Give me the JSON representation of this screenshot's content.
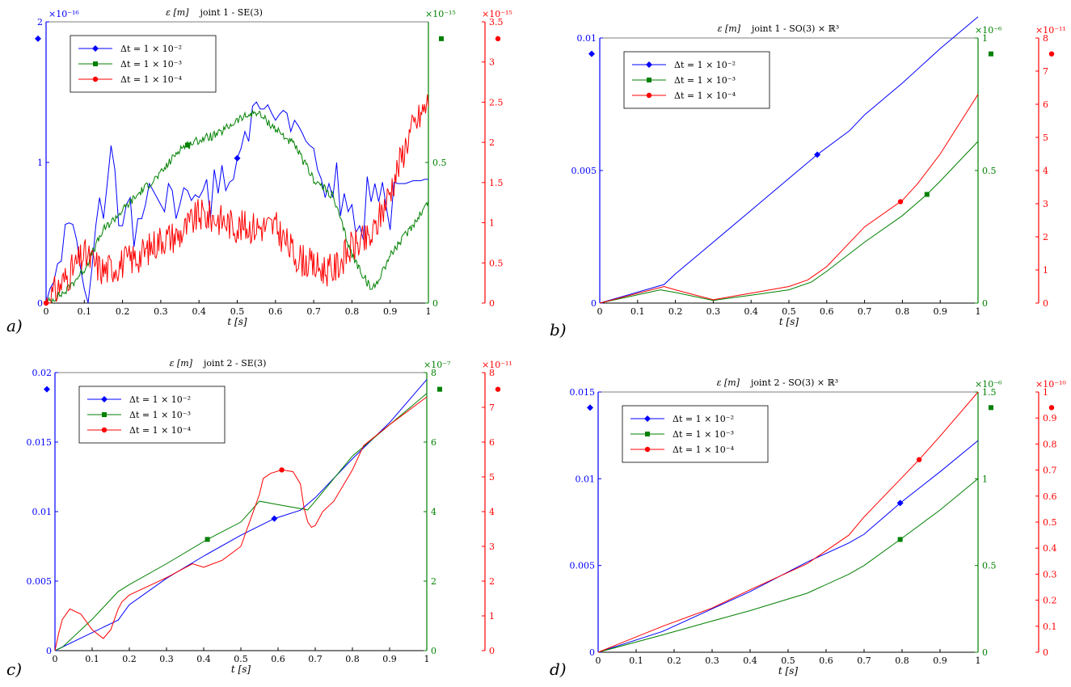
{
  "colors": {
    "blue": "#0000ff",
    "green": "#008000",
    "red": "#ff0000",
    "axis": "#000000"
  },
  "chart_data": [
    {
      "id": "a",
      "panel_label": "a)",
      "type": "line",
      "title_symbol": "ε [m]",
      "title": "joint 1 - SE(3)",
      "xlabel": "t [s]",
      "xlim": [
        0,
        1
      ],
      "xticks": [
        "0",
        "0.1",
        "0.2",
        "0.3",
        "0.4",
        "0.5",
        "0.6",
        "0.7",
        "0.8",
        "0.9",
        "1"
      ],
      "legend_position": "top-left",
      "axes": [
        {
          "side": "left",
          "color": "blue",
          "ylim": [
            0,
            2
          ],
          "ticks": [
            0,
            1,
            2
          ],
          "tick_labels": [
            "0",
            "1",
            "2"
          ],
          "exponent": "×10⁻¹⁶"
        },
        {
          "side": "right",
          "color": "green",
          "ylim": [
            0,
            1.0
          ],
          "ticks": [
            0,
            0.5
          ],
          "tick_labels": [
            "0",
            "0.5"
          ],
          "exponent": "×10⁻¹⁵"
        },
        {
          "side": "right-outer",
          "color": "red",
          "ylim": [
            0,
            3.5
          ],
          "ticks": [
            0,
            0.5,
            1,
            1.5,
            2,
            2.5,
            3,
            3.5
          ],
          "tick_labels": [
            "0",
            "0.5",
            "1",
            "1.5",
            "2",
            "2.5",
            "3",
            "3.5"
          ],
          "exponent": "×10⁻¹⁵"
        }
      ],
      "series": [
        {
          "name": "Δt = 1 × 10⁻²",
          "color": "blue",
          "axis": 0,
          "marker": "diamond",
          "marker_x": 0.5,
          "noise": 0,
          "x": [
            0,
            0.01,
            0.02,
            0.03,
            0.04,
            0.05,
            0.06,
            0.07,
            0.08,
            0.09,
            0.1,
            0.11,
            0.12,
            0.13,
            0.14,
            0.15,
            0.16,
            0.17,
            0.18,
            0.19,
            0.2,
            0.21,
            0.22,
            0.23,
            0.24,
            0.25,
            0.26,
            0.27,
            0.28,
            0.29,
            0.3,
            0.31,
            0.32,
            0.33,
            0.34,
            0.35,
            0.36,
            0.37,
            0.38,
            0.39,
            0.4,
            0.41,
            0.42,
            0.43,
            0.44,
            0.45,
            0.46,
            0.47,
            0.48,
            0.49,
            0.5,
            0.51,
            0.52,
            0.53,
            0.54,
            0.55,
            0.56,
            0.57,
            0.58,
            0.59,
            0.6,
            0.61,
            0.62,
            0.63,
            0.64,
            0.65,
            0.66,
            0.67,
            0.68,
            0.69,
            0.7,
            0.71,
            0.72,
            0.73,
            0.74,
            0.75,
            0.76,
            0.77,
            0.78,
            0.79,
            0.8,
            0.81,
            0.82,
            0.83,
            0.84,
            0.85,
            0.86,
            0.87,
            0.88,
            0.89,
            0.9,
            0.91,
            0.92,
            0.93,
            0.94,
            0.95,
            0.96,
            0.97,
            0.98,
            0.99,
            1.0
          ],
          "y": [
            0,
            0.1,
            0.15,
            0.28,
            0.3,
            0.56,
            0.57,
            0.56,
            0.45,
            0.25,
            0.1,
            0,
            0.25,
            0.55,
            0.75,
            0.6,
            0.85,
            1.12,
            0.95,
            0.55,
            0.55,
            0.7,
            0.75,
            0.4,
            0.6,
            0.6,
            0.7,
            0.85,
            0.8,
            0.75,
            0.7,
            0.65,
            0.85,
            0.8,
            0.6,
            0.7,
            0.82,
            0.8,
            0.73,
            0.77,
            0.75,
            0.8,
            0.88,
            0.6,
            0.95,
            0.78,
            0.98,
            0.8,
            0.86,
            0.88,
            1.03,
            1.1,
            1.22,
            1.15,
            1.4,
            1.43,
            1.38,
            1.38,
            1.41,
            1.35,
            1.3,
            1.34,
            1.37,
            1.35,
            1.22,
            1.3,
            1.26,
            1.21,
            1.15,
            1.12,
            1.1,
            0.95,
            0.88,
            0.75,
            0.85,
            0.75,
            1.0,
            0.62,
            0.78,
            0.65,
            0.7,
            0.5,
            0.55,
            0.45,
            0.9,
            0.72,
            0.85,
            0.72,
            0.86,
            0.68,
            0.52,
            0.86,
            0.85,
            0.85,
            0.85,
            0.86,
            0.87,
            0.87,
            0.87,
            0.88,
            0.88
          ]
        },
        {
          "name": "Δt = 1 × 10⁻³",
          "color": "green",
          "axis": 1,
          "marker": "square",
          "marker_x": 0.37,
          "noise": 0.015,
          "x": [
            0,
            0.05,
            0.1,
            0.15,
            0.2,
            0.25,
            0.3,
            0.35,
            0.4,
            0.45,
            0.5,
            0.55,
            0.6,
            0.65,
            0.7,
            0.75,
            0.8,
            0.85,
            0.86,
            0.9,
            0.95,
            1.0
          ],
          "y": [
            0,
            0.04,
            0.12,
            0.26,
            0.33,
            0.4,
            0.46,
            0.55,
            0.58,
            0.6,
            0.65,
            0.68,
            0.62,
            0.56,
            0.44,
            0.38,
            0.17,
            0.05,
            0.06,
            0.17,
            0.26,
            0.36
          ]
        },
        {
          "name": "Δt = 1 × 10⁻⁴",
          "color": "red",
          "axis": 2,
          "marker": "circle",
          "marker_x": 0.0,
          "noise": 0.06,
          "x": [
            0,
            0.05,
            0.1,
            0.15,
            0.2,
            0.25,
            0.3,
            0.35,
            0.4,
            0.45,
            0.5,
            0.55,
            0.6,
            0.65,
            0.7,
            0.75,
            0.8,
            0.85,
            0.9,
            0.95,
            1.0
          ],
          "y": [
            0,
            0.3,
            0.6,
            0.4,
            0.5,
            0.6,
            0.8,
            0.85,
            1.1,
            1.05,
            0.95,
            0.95,
            0.95,
            0.6,
            0.45,
            0.4,
            0.7,
            0.8,
            1.4,
            2.1,
            2.5
          ]
        }
      ]
    },
    {
      "id": "b",
      "panel_label": "b)",
      "type": "line",
      "title_symbol": "ε [m]",
      "title": "joint 1 - SO(3) × ℝ³",
      "xlabel": "t [s]",
      "xlim": [
        0,
        1
      ],
      "xticks": [
        "0",
        "0.1",
        "0.2",
        "0.3",
        "0.4",
        "0.5",
        "0.6",
        "0.7",
        "0.8",
        "0.9",
        "1"
      ],
      "legend_position": "top-left",
      "axes": [
        {
          "side": "left",
          "color": "blue",
          "ylim": [
            0,
            0.01
          ],
          "ticks": [
            0,
            0.005,
            0.01
          ],
          "tick_labels": [
            "0",
            "0.005",
            "0.01"
          ],
          "exponent": ""
        },
        {
          "side": "right",
          "color": "green",
          "ylim": [
            0,
            1.0
          ],
          "ticks": [
            0,
            0.5,
            1
          ],
          "tick_labels": [
            "0",
            "0.5",
            "1"
          ],
          "exponent": "×10⁻⁶"
        },
        {
          "side": "right-outer",
          "color": "red",
          "ylim": [
            0,
            8
          ],
          "ticks": [
            0,
            1,
            2,
            3,
            4,
            5,
            6,
            7,
            8
          ],
          "tick_labels": [
            "0",
            "1",
            "2",
            "3",
            "4",
            "5",
            "6",
            "7",
            "8"
          ],
          "exponent": "×10⁻¹¹"
        }
      ],
      "series": [
        {
          "name": "Δt = 1 × 10⁻²",
          "color": "blue",
          "axis": 0,
          "marker": "diamond",
          "marker_x": 0.575,
          "noise": 0,
          "x": [
            0,
            0.17,
            0.2,
            0.3,
            0.4,
            0.5,
            0.575,
            0.66,
            0.7,
            0.8,
            0.9,
            1.0
          ],
          "y": [
            0,
            0.0007,
            0.0011,
            0.0023,
            0.0035,
            0.0047,
            0.0056,
            0.0065,
            0.0071,
            0.0083,
            0.0096,
            0.0108
          ]
        },
        {
          "name": "Δt = 1 × 10⁻³",
          "color": "green",
          "axis": 1,
          "marker": "square",
          "marker_x": 0.865,
          "noise": 0,
          "x": [
            0,
            0.16,
            0.2,
            0.3,
            0.35,
            0.4,
            0.5,
            0.56,
            0.6,
            0.7,
            0.8,
            0.865,
            0.9,
            1.0
          ],
          "y": [
            0,
            0.05,
            0.04,
            0.01,
            0.02,
            0.03,
            0.05,
            0.08,
            0.12,
            0.23,
            0.33,
            0.41,
            0.46,
            0.61
          ]
        },
        {
          "name": "Δt = 1 × 10⁻⁴",
          "color": "red",
          "axis": 2,
          "marker": "circle",
          "marker_x": 0.795,
          "noise": 0,
          "x": [
            0,
            0.17,
            0.2,
            0.3,
            0.35,
            0.4,
            0.5,
            0.55,
            0.6,
            0.7,
            0.8,
            0.84,
            0.9,
            1.0
          ],
          "y": [
            0,
            0.5,
            0.4,
            0.1,
            0.2,
            0.3,
            0.5,
            0.7,
            1.1,
            2.3,
            3.1,
            3.6,
            4.5,
            6.3
          ]
        }
      ]
    },
    {
      "id": "c",
      "panel_label": "c)",
      "type": "line",
      "title_symbol": "ε [m]",
      "title": "joint 2 - SE(3)",
      "xlabel": "t [s]",
      "xlim": [
        0,
        1
      ],
      "xticks": [
        "0",
        "0.1",
        "0.2",
        "0.3",
        "0.4",
        "0.5",
        "0.6",
        "0.7",
        "0.8",
        "0.9",
        "1"
      ],
      "legend_position": "top-left",
      "axes": [
        {
          "side": "left",
          "color": "blue",
          "ylim": [
            0,
            0.02
          ],
          "ticks": [
            0,
            0.005,
            0.01,
            0.015,
            0.02
          ],
          "tick_labels": [
            "0",
            "0.005",
            "0.01",
            "0.015",
            "0.02"
          ],
          "exponent": ""
        },
        {
          "side": "right",
          "color": "green",
          "ylim": [
            0,
            8
          ],
          "ticks": [
            0,
            2,
            4,
            6,
            8
          ],
          "tick_labels": [
            "0",
            "2",
            "4",
            "6",
            "8"
          ],
          "exponent": "×10⁻⁷"
        },
        {
          "side": "right-outer",
          "color": "red",
          "ylim": [
            0,
            8
          ],
          "ticks": [
            0,
            1,
            2,
            3,
            4,
            5,
            6,
            7,
            8
          ],
          "tick_labels": [
            "0",
            "1",
            "2",
            "3",
            "4",
            "5",
            "6",
            "7",
            "8"
          ],
          "exponent": "×10⁻¹¹"
        }
      ],
      "series": [
        {
          "name": "Δt = 1 × 10⁻²",
          "color": "blue",
          "axis": 0,
          "marker": "diamond",
          "marker_x": 0.59,
          "noise": 0,
          "x": [
            0,
            0.17,
            0.2,
            0.3,
            0.4,
            0.5,
            0.59,
            0.66,
            0.7,
            0.8,
            0.9,
            1.0
          ],
          "y": [
            0,
            0.0022,
            0.0033,
            0.0052,
            0.0068,
            0.0083,
            0.0095,
            0.0101,
            0.011,
            0.0138,
            0.0164,
            0.0195
          ]
        },
        {
          "name": "Δt = 1 × 10⁻³",
          "color": "green",
          "axis": 1,
          "marker": "square",
          "marker_x": 0.41,
          "noise": 0,
          "x": [
            0,
            0.02,
            0.1,
            0.17,
            0.2,
            0.3,
            0.41,
            0.5,
            0.55,
            0.6,
            0.68,
            0.7,
            0.8,
            0.9,
            1.0
          ],
          "y": [
            0,
            0.1,
            0.9,
            1.7,
            1.9,
            2.5,
            3.2,
            3.7,
            4.3,
            4.2,
            4.05,
            4.3,
            5.6,
            6.5,
            7.4
          ]
        },
        {
          "name": "Δt = 1 × 10⁻⁴",
          "color": "red",
          "axis": 2,
          "marker": "circle",
          "marker_x": 0.61,
          "noise": 0,
          "x": [
            0,
            0.01,
            0.02,
            0.04,
            0.07,
            0.1,
            0.13,
            0.15,
            0.17,
            0.18,
            0.2,
            0.3,
            0.37,
            0.4,
            0.45,
            0.5,
            0.55,
            0.56,
            0.58,
            0.61,
            0.64,
            0.66,
            0.67,
            0.68,
            0.69,
            0.7,
            0.72,
            0.75,
            0.8,
            0.83,
            0.9,
            1.0
          ],
          "y": [
            0,
            0.5,
            0.9,
            1.2,
            1.05,
            0.6,
            0.35,
            0.6,
            1.2,
            1.4,
            1.6,
            2.1,
            2.5,
            2.4,
            2.6,
            3.0,
            4.5,
            4.95,
            5.1,
            5.2,
            5.15,
            4.8,
            4.1,
            3.7,
            3.55,
            3.6,
            4.0,
            4.3,
            5.2,
            5.9,
            6.5,
            7.3
          ]
        }
      ]
    },
    {
      "id": "d",
      "panel_label": "d)",
      "type": "line",
      "title_symbol": "ε [m]",
      "title": "joint 2 - SO(3) × ℝ³",
      "xlabel": "t [s]",
      "xlim": [
        0,
        1
      ],
      "xticks": [
        "0",
        "0.1",
        "0.2",
        "0.3",
        "0.4",
        "0.5",
        "0.6",
        "0.7",
        "0.8",
        "0.9",
        "1"
      ],
      "legend_position": "top-left",
      "axes": [
        {
          "side": "left",
          "color": "blue",
          "ylim": [
            0,
            0.015
          ],
          "ticks": [
            0,
            0.005,
            0.01,
            0.015
          ],
          "tick_labels": [
            "0",
            "0.005",
            "0.01",
            "0.015"
          ],
          "exponent": ""
        },
        {
          "side": "right",
          "color": "green",
          "ylim": [
            0,
            1.5
          ],
          "ticks": [
            0,
            0.5,
            1,
            1.5
          ],
          "tick_labels": [
            "0",
            "0.5",
            "1",
            "1.5"
          ],
          "exponent": "×10⁻⁶"
        },
        {
          "side": "right-outer",
          "color": "red",
          "ylim": [
            0,
            1
          ],
          "ticks": [
            0,
            0.1,
            0.2,
            0.3,
            0.4,
            0.5,
            0.6,
            0.7,
            0.8,
            0.9,
            1
          ],
          "tick_labels": [
            "0",
            "0.1",
            "0.2",
            "0.3",
            "0.4",
            "0.5",
            "0.6",
            "0.7",
            "0.8",
            "0.9",
            "1"
          ],
          "exponent": "×10⁻¹⁰"
        }
      ],
      "series": [
        {
          "name": "Δt = 1 × 10⁻²",
          "color": "blue",
          "axis": 0,
          "marker": "diamond",
          "marker_x": 0.795,
          "noise": 0,
          "x": [
            0,
            0.17,
            0.3,
            0.4,
            0.55,
            0.66,
            0.7,
            0.795,
            0.9,
            1.0
          ],
          "y": [
            0,
            0.0012,
            0.0025,
            0.0035,
            0.0052,
            0.0063,
            0.0068,
            0.0086,
            0.0104,
            0.0122
          ]
        },
        {
          "name": "Δt = 1 × 10⁻³",
          "color": "green",
          "axis": 1,
          "marker": "square",
          "marker_x": 0.795,
          "noise": 0,
          "x": [
            0,
            0.17,
            0.3,
            0.4,
            0.55,
            0.66,
            0.7,
            0.795,
            0.9,
            1.0
          ],
          "y": [
            0,
            0.1,
            0.18,
            0.24,
            0.34,
            0.45,
            0.5,
            0.65,
            0.82,
            1.0
          ]
        },
        {
          "name": "Δt = 1 × 10⁻⁴",
          "color": "red",
          "axis": 2,
          "marker": "circle",
          "marker_x": 0.845,
          "noise": 0,
          "x": [
            0,
            0.17,
            0.3,
            0.4,
            0.55,
            0.66,
            0.7,
            0.845,
            0.9,
            1.0
          ],
          "y": [
            0,
            0.1,
            0.17,
            0.24,
            0.34,
            0.45,
            0.52,
            0.74,
            0.83,
            1.0
          ]
        }
      ]
    }
  ]
}
